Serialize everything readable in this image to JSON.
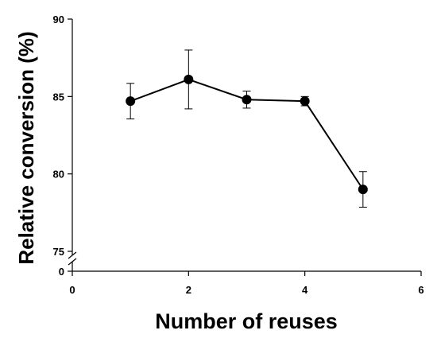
{
  "chart_data": {
    "type": "line",
    "xlabel": "Number of reuses",
    "ylabel": "Relative conversion (%)",
    "xlim": [
      0,
      6
    ],
    "x_ticks": [
      "0",
      "2",
      "4",
      "6"
    ],
    "y_ticks_upper": [
      "75",
      "80",
      "85",
      "90"
    ],
    "y_ticks_lower": [
      "0"
    ],
    "ylim": [
      75,
      90
    ],
    "axis_break": true,
    "grid": false,
    "legend": "none",
    "series": [
      {
        "x": [
          1,
          2,
          3,
          4,
          5
        ],
        "y": [
          84.7,
          86.1,
          84.8,
          84.7,
          79.0
        ],
        "error": [
          1.15,
          1.9,
          0.55,
          0.3,
          1.15
        ],
        "color": "#000000",
        "marker": "filled-circle"
      }
    ]
  }
}
